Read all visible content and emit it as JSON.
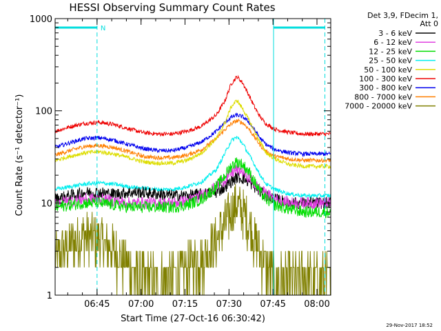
{
  "chart_data": {
    "type": "line",
    "title": "HESSI Observing Summary Count Rates",
    "xlabel": "Start Time (27-Oct-16 06:30:42)",
    "ylabel": "Count Rate (s⁻¹ detector⁻¹)",
    "y_scale": "log",
    "ylim": [
      1,
      1000
    ],
    "xlim_minutes": [
      0,
      94
    ],
    "x_ticks": [
      {
        "t": 14.3,
        "label": "06:45"
      },
      {
        "t": 29.3,
        "label": "07:00"
      },
      {
        "t": 44.3,
        "label": "07:15"
      },
      {
        "t": 59.3,
        "label": "07:30"
      },
      {
        "t": 74.3,
        "label": "07:45"
      },
      {
        "t": 89.3,
        "label": "08:00"
      }
    ],
    "y_ticks": [
      {
        "v": 1,
        "label": "1"
      },
      {
        "v": 10,
        "label": "10"
      },
      {
        "v": 100,
        "label": "100"
      },
      {
        "v": 1000,
        "label": "1000"
      }
    ],
    "legend_header": [
      "Det 3,9, FDecim 1,",
      "Att 0"
    ],
    "legend_position": "right, outside plot",
    "x": [
      0,
      5,
      10,
      15,
      20,
      25,
      30,
      35,
      40,
      45,
      50,
      55,
      58,
      60,
      62,
      64,
      66,
      68,
      70,
      72,
      75,
      80,
      85,
      90,
      94
    ],
    "series": [
      {
        "name": "3 - 6 keV",
        "color": "#000000",
        "values": [
          11,
          12,
          13,
          13,
          12.5,
          13,
          13,
          12.5,
          12,
          12,
          12.5,
          13,
          15,
          17,
          19,
          18.5,
          17,
          15,
          13,
          12,
          11,
          10,
          10,
          10,
          10
        ]
      },
      {
        "name": "6 - 12 keV",
        "color": "#e040e0",
        "values": [
          10,
          10.5,
          11,
          11,
          10.5,
          10,
          10,
          10,
          10,
          10.5,
          12,
          15,
          18,
          21,
          23,
          22,
          19,
          16,
          14,
          12.5,
          11,
          10,
          10,
          10,
          10
        ]
      },
      {
        "name": "12 - 25 keV",
        "color": "#00dd00",
        "values": [
          9,
          9.5,
          10,
          10,
          9.5,
          9,
          9,
          9,
          9,
          9.5,
          11,
          15,
          20,
          25,
          28,
          26,
          22,
          17,
          13,
          11,
          9.5,
          8.5,
          8,
          8,
          8
        ]
      },
      {
        "name": "25 - 50 keV",
        "color": "#00eeee",
        "values": [
          14,
          15,
          16,
          16.5,
          16,
          15,
          14.5,
          14,
          14,
          15,
          17,
          23,
          35,
          47,
          52,
          44,
          34,
          26,
          20,
          16,
          14,
          12.5,
          12,
          12,
          12
        ]
      },
      {
        "name": "50 - 100 keV",
        "color": "#dddd00",
        "values": [
          29,
          32,
          35,
          36,
          34,
          31,
          28,
          27,
          27,
          29,
          35,
          50,
          75,
          110,
          130,
          105,
          80,
          60,
          45,
          35,
          30,
          26,
          25,
          25,
          25
        ]
      },
      {
        "name": "100 - 300 keV",
        "color": "#ee0000",
        "values": [
          60,
          67,
          73,
          75,
          71,
          64,
          58,
          56,
          56,
          60,
          68,
          90,
          130,
          195,
          235,
          200,
          150,
          110,
          85,
          72,
          63,
          58,
          56,
          56,
          56
        ]
      },
      {
        "name": "300 - 800 keV",
        "color": "#0000ee",
        "values": [
          40,
          45,
          50,
          51,
          48,
          43,
          39,
          37,
          37,
          40,
          46,
          60,
          75,
          85,
          90,
          86,
          76,
          62,
          50,
          43,
          38,
          35,
          34,
          34,
          34
        ]
      },
      {
        "name": "800 - 7000 keV",
        "color": "#ff7f00",
        "values": [
          33,
          37,
          41,
          42,
          40,
          36,
          32,
          31,
          31,
          33,
          38,
          50,
          63,
          72,
          78,
          74,
          64,
          52,
          42,
          36,
          32,
          30,
          29,
          29,
          29
        ]
      },
      {
        "name": "7000 - 20000 keV",
        "color": "#808000",
        "values": [
          2.5,
          3.5,
          4.5,
          4,
          3,
          2,
          1.5,
          1.5,
          1.5,
          2,
          2.5,
          4,
          6,
          8,
          9.5,
          8,
          6,
          4,
          3,
          2,
          1.5,
          1.5,
          1.5,
          1.5,
          1.5
        ]
      }
    ],
    "annotations": [
      {
        "kind": "bar",
        "t_start": 0,
        "t_end": 14.3,
        "level": 800,
        "label": "N"
      },
      {
        "kind": "bar",
        "t_start": 74.5,
        "t_end": 92,
        "level": 800,
        "label": ""
      }
    ],
    "vertical_lines_solid": [
      74.5
    ],
    "vertical_lines_dashed": [
      14.3,
      92
    ],
    "bar_color": "#00dddd"
  },
  "footer": {
    "timestamp": "29-Nov-2017 18:52"
  }
}
